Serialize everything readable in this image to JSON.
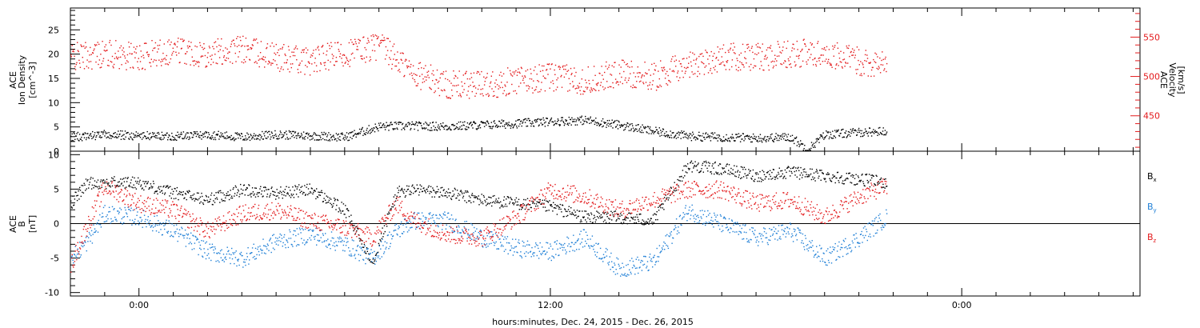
{
  "xaxis": {
    "label": "hours:minutes, Dec. 24, 2015 - Dec. 26, 2015",
    "ticks": [
      {
        "hour": 0,
        "label": "0:00"
      },
      {
        "hour": 12,
        "label": "12:00"
      },
      {
        "hour": 24,
        "label": "0:00"
      }
    ],
    "range_hours": [
      -2.0,
      29.2
    ],
    "minor_step_hours": 1
  },
  "chart_data": [
    {
      "type": "scatter",
      "panel": "top",
      "xlim_hours": [
        -2.0,
        29.2
      ],
      "left_axis": {
        "label_lines": [
          "ACE",
          "Ion Density",
          "[cm^-3]"
        ],
        "ylim": [
          0,
          29.5
        ],
        "ticks": [
          0,
          5,
          10,
          15,
          20,
          25
        ],
        "color": "#000000"
      },
      "right_axis": {
        "label_lines": [
          "ACE",
          "Velocity",
          "[km/s]"
        ],
        "ylim": [
          405,
          587
        ],
        "ticks": [
          450,
          500,
          550
        ],
        "color": "#e31a1c"
      },
      "series": [
        {
          "axis": "left",
          "color": "#000000",
          "points": [
            [
              -2.0,
              3.0
            ],
            [
              -1.0,
              3.5
            ],
            [
              0.0,
              3.3
            ],
            [
              1.0,
              3.2
            ],
            [
              2.0,
              3.5
            ],
            [
              3.0,
              3.0
            ],
            [
              4.0,
              3.5
            ],
            [
              5.0,
              3.3
            ],
            [
              6.0,
              3.0
            ],
            [
              7.0,
              5.2
            ],
            [
              8.0,
              5.3
            ],
            [
              9.0,
              5.2
            ],
            [
              10.0,
              5.5
            ],
            [
              11.0,
              5.8
            ],
            [
              12.0,
              6.2
            ],
            [
              13.0,
              6.5
            ],
            [
              14.0,
              5.5
            ],
            [
              15.0,
              4.2
            ],
            [
              16.0,
              3.2
            ],
            [
              17.0,
              3.0
            ],
            [
              18.0,
              2.8
            ],
            [
              19.0,
              3.0
            ],
            [
              19.5,
              0.5
            ],
            [
              20.0,
              3.5
            ],
            [
              21.0,
              4.0
            ],
            [
              21.8,
              4.2
            ]
          ]
        },
        {
          "axis": "right",
          "color": "#e31a1c",
          "points": [
            [
              -2.0,
              525
            ],
            [
              -1.0,
              530
            ],
            [
              0.0,
              525
            ],
            [
              1.0,
              535
            ],
            [
              2.0,
              530
            ],
            [
              3.0,
              535
            ],
            [
              4.0,
              525
            ],
            [
              5.0,
              520
            ],
            [
              6.0,
              530
            ],
            [
              7.0,
              540
            ],
            [
              8.0,
              505
            ],
            [
              9.0,
              490
            ],
            [
              10.0,
              490
            ],
            [
              11.0,
              495
            ],
            [
              12.0,
              500
            ],
            [
              13.0,
              495
            ],
            [
              14.0,
              505
            ],
            [
              15.0,
              500
            ],
            [
              16.0,
              515
            ],
            [
              17.0,
              525
            ],
            [
              18.0,
              525
            ],
            [
              19.0,
              530
            ],
            [
              20.0,
              530
            ],
            [
              21.0,
              520
            ],
            [
              21.8,
              515
            ]
          ]
        }
      ]
    },
    {
      "type": "scatter",
      "panel": "bottom",
      "xlim_hours": [
        -2.0,
        29.2
      ],
      "left_axis": {
        "label_lines": [
          "ACE",
          "B",
          "[nT]"
        ],
        "ylim": [
          -10.5,
          10.5
        ],
        "ticks": [
          -10,
          -5,
          0,
          5,
          10
        ]
      },
      "zero_line": 0,
      "legend": [
        {
          "label": "Bx",
          "color": "#000000"
        },
        {
          "label": "By",
          "color": "#1f7fd6"
        },
        {
          "label": "Bz",
          "color": "#e31a1c"
        }
      ],
      "series": [
        {
          "name": "Bx",
          "color": "#000000",
          "points": [
            [
              -2.0,
              3.0
            ],
            [
              -1.5,
              6.0
            ],
            [
              -1.0,
              6.0
            ],
            [
              0.0,
              6.0
            ],
            [
              1.0,
              4.5
            ],
            [
              2.0,
              3.5
            ],
            [
              3.0,
              5.0
            ],
            [
              4.0,
              4.5
            ],
            [
              5.0,
              5.0
            ],
            [
              6.0,
              2.0
            ],
            [
              6.8,
              -5.5
            ],
            [
              7.5,
              4.5
            ],
            [
              8.0,
              5.0
            ],
            [
              9.0,
              4.5
            ],
            [
              10.0,
              3.5
            ],
            [
              11.0,
              3.0
            ],
            [
              12.0,
              2.5
            ],
            [
              13.0,
              1.0
            ],
            [
              14.0,
              1.0
            ],
            [
              15.0,
              0.5
            ],
            [
              16.0,
              8.5
            ],
            [
              17.0,
              8.0
            ],
            [
              18.0,
              7.0
            ],
            [
              19.0,
              7.5
            ],
            [
              20.0,
              7.0
            ],
            [
              21.0,
              6.5
            ],
            [
              21.8,
              6.0
            ]
          ]
        },
        {
          "name": "By",
          "color": "#1f7fd6",
          "points": [
            [
              -2.0,
              -5.0
            ],
            [
              -1.5,
              -2.5
            ],
            [
              -1.0,
              1.5
            ],
            [
              0.0,
              1.0
            ],
            [
              1.0,
              -1.0
            ],
            [
              2.0,
              -4.0
            ],
            [
              3.0,
              -5.0
            ],
            [
              4.0,
              -2.5
            ],
            [
              5.0,
              -1.5
            ],
            [
              6.0,
              -3.0
            ],
            [
              6.8,
              -5.0
            ],
            [
              7.5,
              -1.0
            ],
            [
              8.0,
              0.5
            ],
            [
              9.0,
              0.5
            ],
            [
              10.0,
              -2.0
            ],
            [
              11.0,
              -3.5
            ],
            [
              12.0,
              -4.0
            ],
            [
              13.0,
              -2.0
            ],
            [
              14.0,
              -6.5
            ],
            [
              15.0,
              -5.5
            ],
            [
              16.0,
              2.0
            ],
            [
              17.0,
              0.0
            ],
            [
              18.0,
              -2.0
            ],
            [
              19.0,
              -1.0
            ],
            [
              20.0,
              -5.0
            ],
            [
              21.0,
              -2.0
            ],
            [
              21.8,
              1.0
            ]
          ]
        },
        {
          "name": "Bz",
          "color": "#e31a1c",
          "points": [
            [
              -2.0,
              -6.0
            ],
            [
              -1.5,
              0.0
            ],
            [
              -1.0,
              5.5
            ],
            [
              0.0,
              3.0
            ],
            [
              1.0,
              2.0
            ],
            [
              2.0,
              -1.0
            ],
            [
              3.0,
              1.5
            ],
            [
              4.0,
              2.0
            ],
            [
              5.0,
              0.5
            ],
            [
              6.0,
              -0.5
            ],
            [
              6.8,
              -2.0
            ],
            [
              7.5,
              3.0
            ],
            [
              8.0,
              0.5
            ],
            [
              9.0,
              -1.5
            ],
            [
              10.0,
              -2.0
            ],
            [
              11.0,
              1.0
            ],
            [
              12.0,
              5.0
            ],
            [
              13.0,
              4.0
            ],
            [
              14.0,
              2.0
            ],
            [
              15.0,
              3.5
            ],
            [
              16.0,
              5.0
            ],
            [
              17.0,
              5.0
            ],
            [
              18.0,
              3.0
            ],
            [
              19.0,
              3.5
            ],
            [
              20.0,
              1.0
            ],
            [
              21.0,
              4.0
            ],
            [
              21.8,
              5.5
            ]
          ]
        }
      ]
    }
  ]
}
